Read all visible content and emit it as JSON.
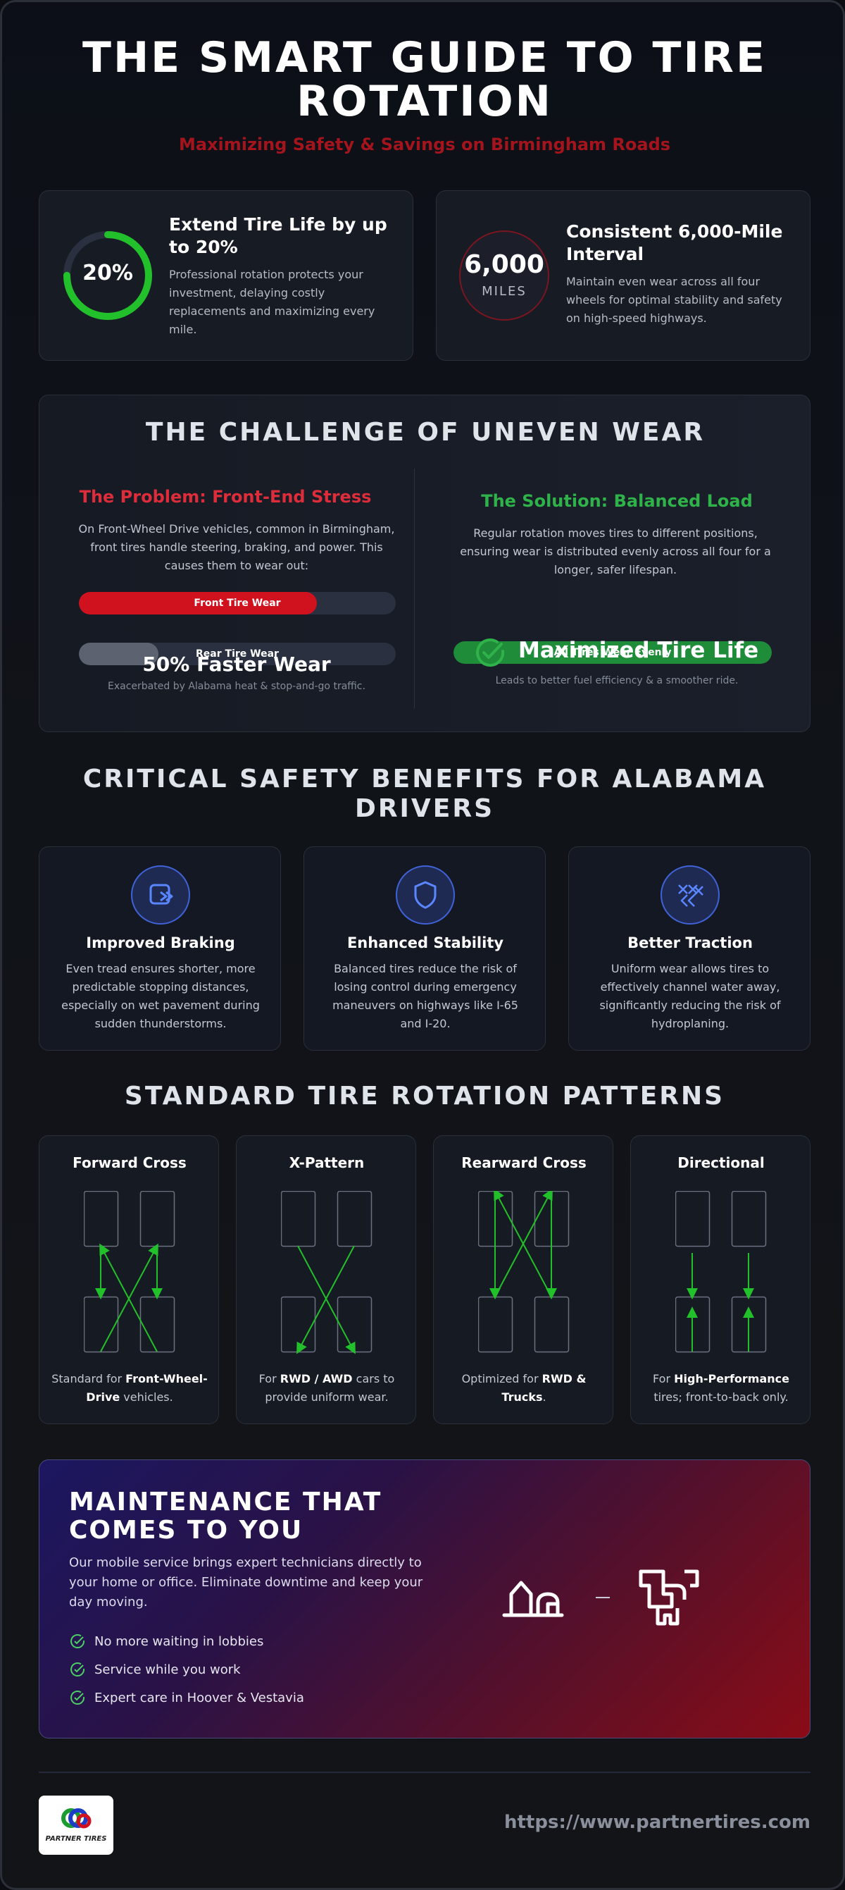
{
  "header": {
    "title": "THE SMART GUIDE TO TIRE ROTATION",
    "subtitle": "Maximizing Safety & Savings on Birmingham Roads"
  },
  "stats": [
    {
      "value": "20%",
      "progress": 0.75,
      "title": "Extend Tire Life by up to 20%",
      "description": "Professional rotation protects your investment, delaying costly replacements and maximizing every mile."
    },
    {
      "value": "6,000",
      "unit": "MILES",
      "title": "Consistent 6,000-Mile Interval",
      "description": "Maintain even wear across all four wheels for optimal stability and safety on high-speed highways."
    }
  ],
  "challenge": {
    "title": "THE CHALLENGE OF UNEVEN WEAR",
    "problem": {
      "title": "The Problem: Front-End Stress",
      "description": "On Front-Wheel Drive vehicles, common in Birmingham, front tires handle steering, braking, and power. This causes them to wear out:",
      "bars": [
        {
          "label": "Front Tire Wear",
          "fill": 0.75,
          "color": "#d0121f"
        },
        {
          "label": "Rear Tire Wear",
          "fill": 0.25,
          "color": "#5c6270"
        }
      ],
      "stat": "50% Faster Wear",
      "note": "Exacerbated by Alabama heat & stop-and-go traffic."
    },
    "solution": {
      "title": "The Solution: Balanced Load",
      "description": "Regular rotation moves tires to different positions, ensuring wear is distributed evenly across all four for a longer, safer lifespan.",
      "bar": {
        "label": "All Tires Wear Evenly",
        "fill": 1.0,
        "color": "#1f8c3a"
      },
      "stat": "Maximized Tire Life",
      "note": "Leads to better fuel efficiency & a smoother ride."
    }
  },
  "benefits": {
    "title": "CRITICAL SAFETY BENEFITS FOR ALABAMA DRIVERS",
    "items": [
      {
        "icon": "braking-icon",
        "title": "Improved Braking",
        "description": "Even tread ensures shorter, more predictable stopping distances, especially on wet pavement during sudden thunderstorms."
      },
      {
        "icon": "shield-icon",
        "title": "Enhanced Stability",
        "description": "Balanced tires reduce the risk of losing control during emergency maneuvers on highways like I-65 and I-20."
      },
      {
        "icon": "traction-icon",
        "title": "Better Traction",
        "description": "Uniform wear allows tires to effectively channel water away, significantly reducing the risk of hydroplaning."
      }
    ]
  },
  "patterns": {
    "title": "STANDARD TIRE ROTATION PATTERNS",
    "items": [
      {
        "title": "Forward Cross",
        "desc_pre": "Standard for ",
        "desc_bold": "Front-Wheel-Drive",
        "desc_post": " vehicles."
      },
      {
        "title": "X-Pattern",
        "desc_pre": "For ",
        "desc_bold": "RWD / AWD",
        "desc_post": " cars to provide uniform wear."
      },
      {
        "title": "Rearward Cross",
        "desc_pre": "Optimized for ",
        "desc_bold": "RWD & Trucks",
        "desc_post": "."
      },
      {
        "title": "Directional",
        "desc_pre": "For ",
        "desc_bold": "High-Performance",
        "desc_post": " tires; front-to-back only."
      }
    ]
  },
  "maintenance": {
    "title_line1": "MAINTENANCE THAT",
    "title_line2": "COMES TO YOU",
    "description": "Our mobile service brings expert technicians directly to your home or office. Eliminate downtime and keep your day moving.",
    "checks": [
      "No more waiting in lobbies",
      "Service while you work",
      "Expert care in Hoover & Vestavia"
    ]
  },
  "footer": {
    "logo_text": "PARTNER TIRES",
    "url": "https://www.partnertires.com"
  },
  "colors": {
    "accent_green": "#22c02a",
    "accent_red": "#d0121f",
    "accent_blue": "#3f63d6"
  }
}
